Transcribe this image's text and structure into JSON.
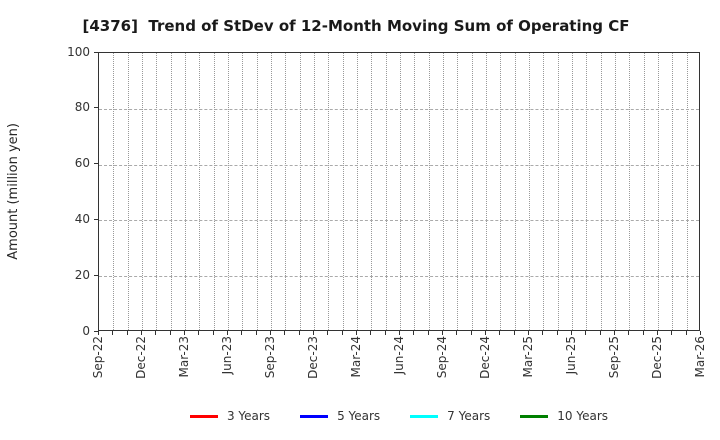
{
  "chart_data": {
    "type": "line",
    "title": "[4376]  Trend of StDev of 12-Month Moving Sum of Operating CF",
    "ylabel": "Amount (million yen)",
    "xlabel": "",
    "ylim": [
      0,
      100
    ],
    "yticks": [
      0,
      20,
      40,
      60,
      80,
      100
    ],
    "x_tick_labels": [
      "Sep-22",
      "Dec-22",
      "Mar-23",
      "Jun-23",
      "Sep-23",
      "Dec-23",
      "Mar-24",
      "Jun-24",
      "Sep-24",
      "Dec-24",
      "Mar-25",
      "Jun-25",
      "Sep-25",
      "Dec-25",
      "Mar-26"
    ],
    "minor_ticks_per_major": 3,
    "grid": true,
    "legend_position": "bottom-center",
    "series": [
      {
        "name": "3 Years",
        "color": "#ff0000",
        "values": []
      },
      {
        "name": "5 Years",
        "color": "#0000ff",
        "values": []
      },
      {
        "name": "7 Years",
        "color": "#00ffff",
        "values": []
      },
      {
        "name": "10 Years",
        "color": "#008000",
        "values": []
      }
    ]
  }
}
